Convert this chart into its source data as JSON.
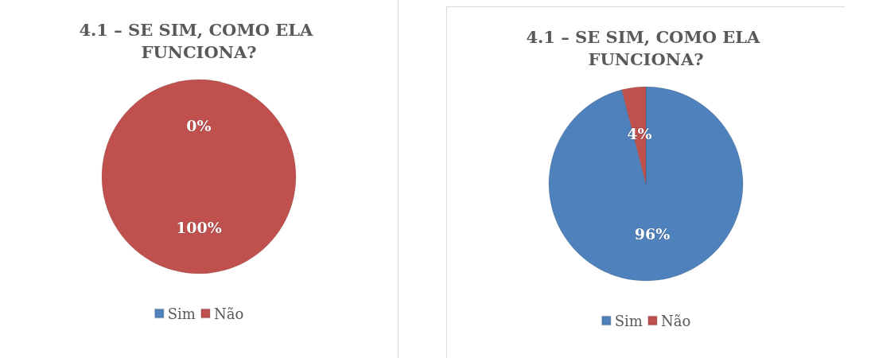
{
  "chart_data": [
    {
      "type": "pie",
      "title": "4.1 – SE SIM, COMO ELA FUNCIONA?",
      "categories": [
        "Sim",
        "Não"
      ],
      "values": [
        0,
        100
      ],
      "value_labels": [
        "0%",
        "100%"
      ],
      "colors": [
        "#4f81bd",
        "#c0504d"
      ],
      "legend": "bottom"
    },
    {
      "type": "pie",
      "title": "4.1 – SE SIM, COMO ELA FUNCIONA?",
      "categories": [
        "Sim",
        "Não"
      ],
      "values": [
        96,
        4
      ],
      "value_labels": [
        "96%",
        "4%"
      ],
      "colors": [
        "#4f81bd",
        "#c0504d"
      ],
      "legend": "bottom"
    }
  ]
}
